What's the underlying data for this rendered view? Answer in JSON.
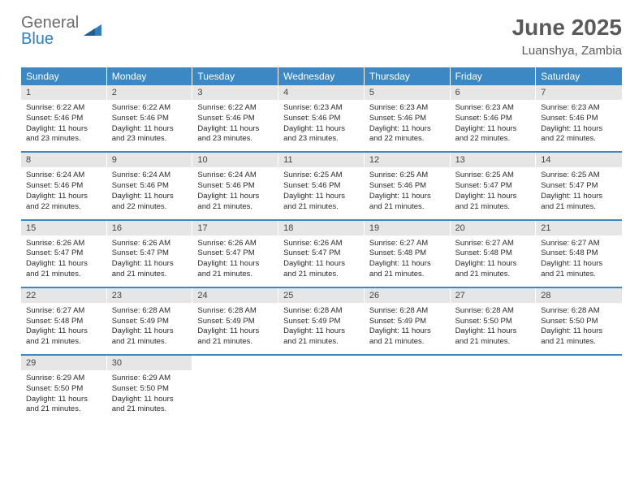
{
  "logo": {
    "line1": "General",
    "line2": "Blue"
  },
  "title": "June 2025",
  "location": "Luanshya, Zambia",
  "colors": {
    "header_bg": "#3b88c4",
    "header_text": "#ffffff",
    "daynum_bg": "#e6e6e6",
    "title_color": "#5a5a5a",
    "logo_gray": "#6b6b6b",
    "logo_blue": "#2f7ec1",
    "week_border": "#3b88c4"
  },
  "weekdays": [
    "Sunday",
    "Monday",
    "Tuesday",
    "Wednesday",
    "Thursday",
    "Friday",
    "Saturday"
  ],
  "labels": {
    "sunrise": "Sunrise:",
    "sunset": "Sunset:",
    "daylight": "Daylight:"
  },
  "days": [
    {
      "n": "1",
      "sunrise": "6:22 AM",
      "sunset": "5:46 PM",
      "daylight": "11 hours and 23 minutes."
    },
    {
      "n": "2",
      "sunrise": "6:22 AM",
      "sunset": "5:46 PM",
      "daylight": "11 hours and 23 minutes."
    },
    {
      "n": "3",
      "sunrise": "6:22 AM",
      "sunset": "5:46 PM",
      "daylight": "11 hours and 23 minutes."
    },
    {
      "n": "4",
      "sunrise": "6:23 AM",
      "sunset": "5:46 PM",
      "daylight": "11 hours and 23 minutes."
    },
    {
      "n": "5",
      "sunrise": "6:23 AM",
      "sunset": "5:46 PM",
      "daylight": "11 hours and 22 minutes."
    },
    {
      "n": "6",
      "sunrise": "6:23 AM",
      "sunset": "5:46 PM",
      "daylight": "11 hours and 22 minutes."
    },
    {
      "n": "7",
      "sunrise": "6:23 AM",
      "sunset": "5:46 PM",
      "daylight": "11 hours and 22 minutes."
    },
    {
      "n": "8",
      "sunrise": "6:24 AM",
      "sunset": "5:46 PM",
      "daylight": "11 hours and 22 minutes."
    },
    {
      "n": "9",
      "sunrise": "6:24 AM",
      "sunset": "5:46 PM",
      "daylight": "11 hours and 22 minutes."
    },
    {
      "n": "10",
      "sunrise": "6:24 AM",
      "sunset": "5:46 PM",
      "daylight": "11 hours and 21 minutes."
    },
    {
      "n": "11",
      "sunrise": "6:25 AM",
      "sunset": "5:46 PM",
      "daylight": "11 hours and 21 minutes."
    },
    {
      "n": "12",
      "sunrise": "6:25 AM",
      "sunset": "5:46 PM",
      "daylight": "11 hours and 21 minutes."
    },
    {
      "n": "13",
      "sunrise": "6:25 AM",
      "sunset": "5:47 PM",
      "daylight": "11 hours and 21 minutes."
    },
    {
      "n": "14",
      "sunrise": "6:25 AM",
      "sunset": "5:47 PM",
      "daylight": "11 hours and 21 minutes."
    },
    {
      "n": "15",
      "sunrise": "6:26 AM",
      "sunset": "5:47 PM",
      "daylight": "11 hours and 21 minutes."
    },
    {
      "n": "16",
      "sunrise": "6:26 AM",
      "sunset": "5:47 PM",
      "daylight": "11 hours and 21 minutes."
    },
    {
      "n": "17",
      "sunrise": "6:26 AM",
      "sunset": "5:47 PM",
      "daylight": "11 hours and 21 minutes."
    },
    {
      "n": "18",
      "sunrise": "6:26 AM",
      "sunset": "5:47 PM",
      "daylight": "11 hours and 21 minutes."
    },
    {
      "n": "19",
      "sunrise": "6:27 AM",
      "sunset": "5:48 PM",
      "daylight": "11 hours and 21 minutes."
    },
    {
      "n": "20",
      "sunrise": "6:27 AM",
      "sunset": "5:48 PM",
      "daylight": "11 hours and 21 minutes."
    },
    {
      "n": "21",
      "sunrise": "6:27 AM",
      "sunset": "5:48 PM",
      "daylight": "11 hours and 21 minutes."
    },
    {
      "n": "22",
      "sunrise": "6:27 AM",
      "sunset": "5:48 PM",
      "daylight": "11 hours and 21 minutes."
    },
    {
      "n": "23",
      "sunrise": "6:28 AM",
      "sunset": "5:49 PM",
      "daylight": "11 hours and 21 minutes."
    },
    {
      "n": "24",
      "sunrise": "6:28 AM",
      "sunset": "5:49 PM",
      "daylight": "11 hours and 21 minutes."
    },
    {
      "n": "25",
      "sunrise": "6:28 AM",
      "sunset": "5:49 PM",
      "daylight": "11 hours and 21 minutes."
    },
    {
      "n": "26",
      "sunrise": "6:28 AM",
      "sunset": "5:49 PM",
      "daylight": "11 hours and 21 minutes."
    },
    {
      "n": "27",
      "sunrise": "6:28 AM",
      "sunset": "5:50 PM",
      "daylight": "11 hours and 21 minutes."
    },
    {
      "n": "28",
      "sunrise": "6:28 AM",
      "sunset": "5:50 PM",
      "daylight": "11 hours and 21 minutes."
    },
    {
      "n": "29",
      "sunrise": "6:29 AM",
      "sunset": "5:50 PM",
      "daylight": "11 hours and 21 minutes."
    },
    {
      "n": "30",
      "sunrise": "6:29 AM",
      "sunset": "5:50 PM",
      "daylight": "11 hours and 21 minutes."
    }
  ],
  "layout": {
    "start_weekday": 0,
    "days_in_month": 30,
    "columns": 7
  }
}
